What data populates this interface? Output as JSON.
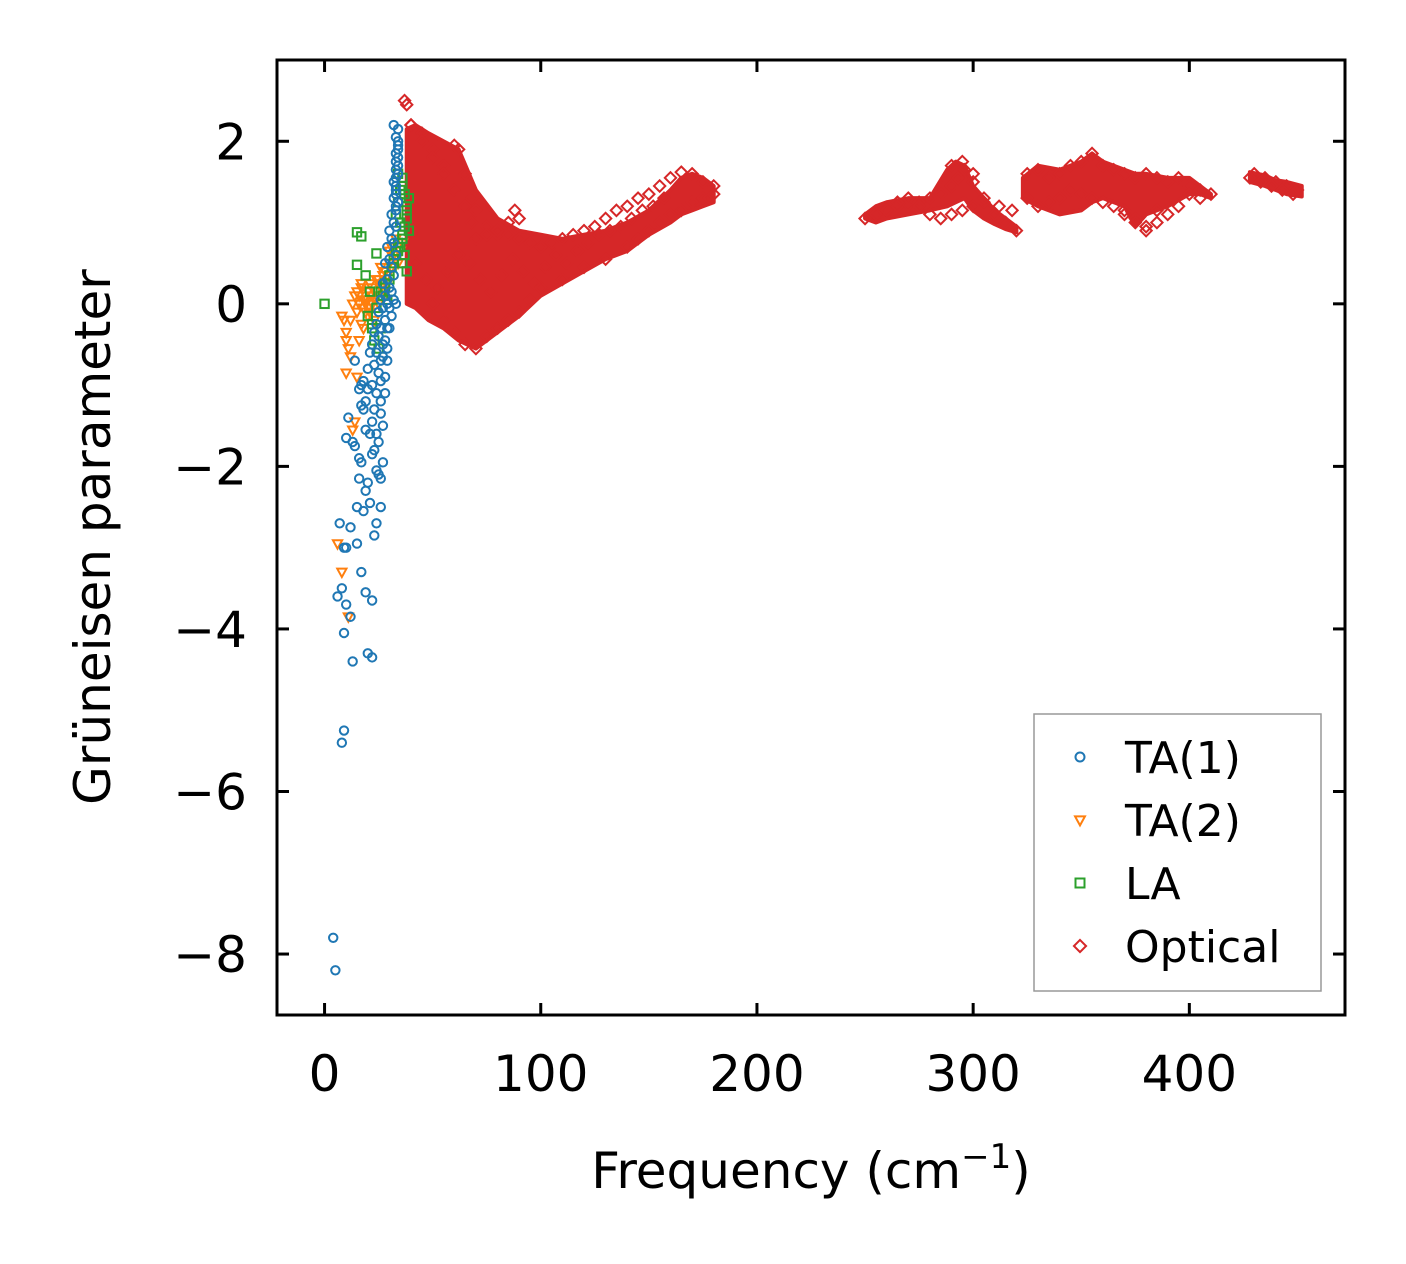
{
  "chart_data": {
    "type": "scatter",
    "title": "",
    "xlabel": "Frequency (cm",
    "xlabel_superscript": "−1",
    "xlabel_suffix": ")",
    "ylabel": "Grüneisen parameter",
    "xlim": [
      -22,
      472
    ],
    "ylim": [
      -8.75,
      3.0
    ],
    "xticks": [
      0,
      100,
      200,
      300,
      400
    ],
    "xtick_labels": [
      "0",
      "100",
      "200",
      "300",
      "400"
    ],
    "yticks": [
      2,
      0,
      -2,
      -4,
      -6,
      -8
    ],
    "ytick_labels": [
      "2",
      "0",
      "−2",
      "−4",
      "−6",
      "−8"
    ],
    "grid": false,
    "legend_position": "lower-right",
    "series": [
      {
        "name": "TA(1)",
        "color": "#1f77b4",
        "marker": "circle",
        "x": [
          4,
          5,
          8,
          9,
          9,
          10,
          9,
          12,
          13,
          15,
          20,
          22,
          19,
          17,
          7,
          8,
          6,
          10,
          12,
          10,
          13,
          16,
          18,
          22,
          24,
          15,
          16,
          19,
          23,
          26,
          11,
          14,
          17,
          20,
          21,
          24,
          26,
          14,
          17,
          19,
          22,
          25,
          27,
          16,
          18,
          21,
          23,
          25,
          27,
          17,
          19,
          22,
          24,
          26,
          28,
          18,
          20,
          23,
          26,
          28,
          20,
          22,
          24,
          26,
          29,
          21,
          23,
          25,
          27,
          29,
          22,
          24,
          26,
          28,
          30,
          23,
          25,
          27,
          29,
          31,
          24,
          26,
          28,
          30,
          32,
          25,
          27,
          29,
          31,
          26,
          28,
          30,
          32,
          27,
          29,
          31,
          33,
          28,
          30,
          32,
          29,
          31,
          33,
          30,
          32,
          31,
          33,
          32,
          33,
          33,
          34,
          32,
          33,
          34,
          33,
          34,
          33,
          34,
          32,
          33,
          34,
          33,
          34,
          33,
          34,
          33,
          34,
          33
        ],
        "y": [
          -7.8,
          -8.2,
          -5.4,
          -5.25,
          -4.05,
          -3.7,
          -3.0,
          -3.85,
          -4.4,
          -2.95,
          -4.3,
          -4.35,
          -3.55,
          -3.3,
          -2.7,
          -3.5,
          -3.6,
          -3.0,
          -2.75,
          -1.65,
          -1.7,
          -1.9,
          -2.55,
          -3.65,
          -2.7,
          -2.5,
          -2.15,
          -2.3,
          -2.85,
          -2.5,
          -1.4,
          -1.75,
          -1.95,
          -2.2,
          -2.45,
          -2.05,
          -2.15,
          -0.7,
          -1.25,
          -1.55,
          -1.85,
          -2.1,
          -1.95,
          -1.05,
          -1.3,
          -1.6,
          -1.8,
          -1.7,
          -1.5,
          -1.0,
          -1.2,
          -1.45,
          -1.6,
          -1.35,
          -1.1,
          -0.95,
          -1.05,
          -1.3,
          -1.2,
          -0.9,
          -0.8,
          -1.0,
          -1.1,
          -0.95,
          -0.7,
          -0.6,
          -0.75,
          -0.85,
          -0.65,
          -0.55,
          -0.5,
          -0.6,
          -0.7,
          -0.45,
          -0.3,
          -0.35,
          -0.4,
          -0.5,
          -0.3,
          -0.15,
          -0.25,
          -0.3,
          -0.2,
          -0.05,
          0.05,
          -0.1,
          -0.05,
          0.0,
          0.15,
          0.05,
          0.1,
          0.2,
          0.35,
          0.25,
          0.3,
          0.45,
          0.6,
          0.5,
          0.55,
          0.75,
          0.7,
          0.8,
          0.95,
          0.9,
          1.0,
          1.1,
          1.2,
          1.3,
          1.4,
          1.55,
          1.7,
          1.5,
          1.65,
          1.8,
          1.85,
          1.95,
          2.05,
          2.15,
          2.2,
          1.35,
          1.25,
          1.45,
          1.6,
          1.75,
          1.9,
          1.15,
          2.0,
          0.0
        ]
      },
      {
        "name": "TA(2)",
        "color": "#ff7f0e",
        "marker": "triangle-down",
        "x": [
          6,
          8,
          10,
          11,
          10,
          9,
          12,
          13,
          11,
          14,
          15,
          16,
          17,
          18,
          19,
          20,
          21,
          22,
          14,
          16,
          18,
          20,
          22,
          24,
          15,
          17,
          19,
          21,
          23,
          25,
          26,
          27,
          28,
          29,
          30,
          31,
          32,
          33,
          24,
          26,
          28,
          30,
          22,
          20,
          18,
          16,
          12,
          10,
          8,
          25,
          27,
          29,
          31,
          33,
          23,
          21,
          19,
          17,
          13,
          15,
          34,
          35,
          36
        ],
        "y": [
          -2.95,
          -3.3,
          -0.35,
          -0.55,
          -0.85,
          -0.2,
          -0.65,
          -1.55,
          -3.85,
          -1.45,
          -0.9,
          0.1,
          0.2,
          0.05,
          -0.1,
          0.15,
          0.25,
          0.0,
          0.1,
          0.0,
          -0.05,
          0.05,
          0.2,
          0.1,
          0.15,
          0.25,
          0.05,
          -0.1,
          -0.2,
          0.3,
          0.2,
          0.35,
          0.4,
          0.25,
          0.5,
          0.45,
          0.6,
          0.55,
          0.3,
          0.45,
          0.15,
          0.65,
          0.1,
          -0.15,
          -0.3,
          -0.45,
          -0.2,
          -0.45,
          -0.15,
          0.0,
          0.25,
          0.35,
          0.7,
          0.8,
          0.05,
          -0.05,
          0.0,
          -0.25,
          0.0,
          -0.1,
          0.5,
          0.65,
          0.75
        ]
      },
      {
        "name": "LA",
        "color": "#2ca02c",
        "marker": "square",
        "x": [
          0,
          15,
          17,
          15,
          24,
          19,
          21,
          22,
          23,
          25,
          26,
          27,
          28,
          29,
          30,
          31,
          32,
          33,
          34,
          35,
          36,
          37,
          38,
          39,
          33,
          34,
          35,
          36,
          37,
          38,
          35,
          36,
          37,
          38,
          39,
          34,
          36,
          38,
          30,
          32,
          34,
          36,
          28,
          26,
          24,
          22,
          20
        ],
        "y": [
          0.0,
          0.88,
          0.83,
          0.48,
          0.62,
          0.35,
          0.15,
          -0.25,
          -0.45,
          -0.55,
          -0.3,
          0.1,
          0.2,
          0.05,
          0.3,
          0.45,
          0.55,
          0.65,
          0.75,
          0.7,
          0.85,
          0.95,
          1.05,
          1.3,
          1.1,
          1.25,
          1.4,
          1.55,
          1.35,
          1.15,
          1.0,
          0.8,
          0.6,
          0.4,
          0.9,
          1.6,
          1.45,
          1.2,
          0.35,
          0.5,
          0.65,
          0.5,
          0.25,
          0.15,
          -0.05,
          -0.3,
          -0.15
        ]
      },
      {
        "name": "Optical",
        "color": "#d62728",
        "marker": "diamond",
        "x": [
          37,
          38,
          40,
          45,
          50,
          55,
          60,
          62,
          65,
          68,
          70,
          75,
          80,
          85,
          88,
          90,
          50,
          55,
          60,
          65,
          70,
          75,
          80,
          85,
          90,
          95,
          100,
          110,
          120,
          130,
          140,
          145,
          150,
          155,
          160,
          165,
          170,
          175,
          178,
          180,
          180,
          175,
          170,
          165,
          160,
          155,
          150,
          145,
          140,
          135,
          130,
          125,
          120,
          115,
          110,
          105,
          100,
          95,
          90,
          85,
          80,
          75,
          70,
          68,
          65,
          60,
          55,
          50,
          45,
          40,
          42,
          47,
          52,
          57,
          62,
          67,
          72,
          77,
          82,
          87,
          92,
          97,
          102,
          107,
          112,
          117,
          122,
          127,
          132,
          137,
          142,
          147,
          152,
          157,
          250,
          255,
          260,
          265,
          270,
          275,
          280,
          285,
          290,
          293,
          296,
          300,
          305,
          310,
          315,
          320,
          318,
          312,
          305,
          300,
          295,
          290,
          285,
          280,
          275,
          270,
          265,
          260,
          255,
          290,
          295,
          300,
          325,
          330,
          335,
          340,
          345,
          350,
          355,
          360,
          365,
          370,
          375,
          380,
          385,
          390,
          395,
          400,
          405,
          410,
          405,
          400,
          395,
          390,
          385,
          380,
          375,
          370,
          365,
          360,
          355,
          350,
          345,
          340,
          335,
          330,
          325,
          370,
          375,
          380,
          385,
          430,
          435,
          440,
          445,
          450,
          448,
          443,
          438,
          433,
          428
        ],
        "y": [
          2.5,
          2.45,
          2.2,
          2.1,
          1.9,
          1.7,
          1.95,
          1.9,
          1.6,
          1.3,
          1.15,
          0.95,
          0.85,
          1.0,
          1.15,
          1.05,
          0.0,
          -0.2,
          -0.35,
          -0.5,
          -0.55,
          -0.4,
          -0.3,
          -0.2,
          -0.1,
          0.05,
          0.2,
          0.3,
          0.45,
          0.55,
          0.7,
          0.8,
          0.9,
          1.0,
          1.1,
          1.15,
          1.25,
          1.3,
          1.3,
          1.35,
          1.45,
          1.5,
          1.6,
          1.62,
          1.55,
          1.45,
          1.35,
          1.3,
          1.2,
          1.15,
          1.05,
          0.95,
          0.9,
          0.85,
          0.8,
          0.75,
          0.7,
          0.75,
          0.8,
          0.85,
          0.9,
          0.85,
          0.8,
          1.0,
          1.2,
          1.4,
          1.6,
          1.8,
          2.0,
          2.2,
          0.5,
          0.3,
          0.2,
          0.4,
          0.6,
          0.5,
          0.3,
          0.15,
          0.35,
          0.55,
          0.4,
          0.25,
          0.45,
          0.6,
          0.5,
          0.65,
          0.75,
          0.85,
          0.9,
          0.95,
          1.05,
          1.15,
          1.2,
          1.3,
          1.05,
          1.1,
          1.15,
          1.2,
          1.22,
          1.25,
          1.3,
          1.35,
          1.45,
          1.55,
          1.65,
          1.5,
          1.3,
          1.1,
          1.0,
          0.9,
          1.15,
          1.2,
          1.25,
          1.2,
          1.15,
          1.1,
          1.05,
          1.1,
          1.2,
          1.3,
          1.25,
          1.15,
          1.1,
          1.7,
          1.75,
          1.6,
          1.6,
          1.65,
          1.55,
          1.6,
          1.7,
          1.75,
          1.85,
          1.7,
          1.65,
          1.6,
          1.55,
          1.6,
          1.55,
          1.5,
          1.55,
          1.45,
          1.4,
          1.35,
          1.3,
          1.35,
          1.2,
          1.1,
          1.0,
          0.95,
          1.05,
          1.15,
          1.2,
          1.25,
          1.3,
          1.35,
          1.4,
          1.3,
          1.25,
          1.2,
          1.3,
          1.1,
          1.0,
          0.9,
          1.15,
          1.6,
          1.55,
          1.5,
          1.45,
          1.4,
          1.35,
          1.4,
          1.45,
          1.5,
          1.55
        ]
      }
    ],
    "optical_bands": [
      {
        "x": [
          38,
          42,
          48,
          55,
          62,
          70,
          80,
          90,
          100,
          110,
          120,
          130,
          140,
          150,
          160,
          165,
          170,
          175,
          180
        ],
        "y_low": [
          0.0,
          -0.05,
          -0.2,
          -0.3,
          -0.45,
          -0.55,
          -0.35,
          -0.15,
          0.1,
          0.25,
          0.4,
          0.55,
          0.65,
          0.85,
          1.0,
          1.1,
          1.15,
          1.2,
          1.25
        ],
        "y_high": [
          2.15,
          2.2,
          2.1,
          2.0,
          1.9,
          1.4,
          1.05,
          0.9,
          0.85,
          0.8,
          0.85,
          0.9,
          1.0,
          1.15,
          1.4,
          1.55,
          1.6,
          1.55,
          1.45
        ]
      },
      {
        "x": [
          250,
          255,
          260,
          270,
          280,
          288,
          292,
          296,
          300,
          305,
          310,
          315,
          320
        ],
        "y_low": [
          1.05,
          1.0,
          1.05,
          1.1,
          1.15,
          1.2,
          1.25,
          1.3,
          1.15,
          1.05,
          0.98,
          0.92,
          0.88
        ],
        "y_high": [
          1.1,
          1.2,
          1.25,
          1.3,
          1.3,
          1.65,
          1.75,
          1.7,
          1.45,
          1.3,
          1.15,
          1.05,
          0.95
        ]
      },
      {
        "x": [
          323,
          330,
          340,
          350,
          355,
          360,
          370,
          375,
          380,
          390,
          400,
          405,
          410
        ],
        "y_low": [
          1.3,
          1.2,
          1.1,
          1.15,
          1.25,
          1.3,
          1.2,
          0.95,
          1.1,
          1.2,
          1.35,
          1.35,
          1.3
        ],
        "y_high": [
          1.55,
          1.7,
          1.65,
          1.75,
          1.85,
          1.75,
          1.65,
          1.6,
          1.6,
          1.55,
          1.55,
          1.45,
          1.35
        ]
      },
      {
        "x": [
          428,
          435,
          440,
          445,
          452
        ],
        "y_low": [
          1.5,
          1.45,
          1.4,
          1.35,
          1.32
        ],
        "y_high": [
          1.62,
          1.58,
          1.52,
          1.5,
          1.45
        ]
      }
    ]
  }
}
